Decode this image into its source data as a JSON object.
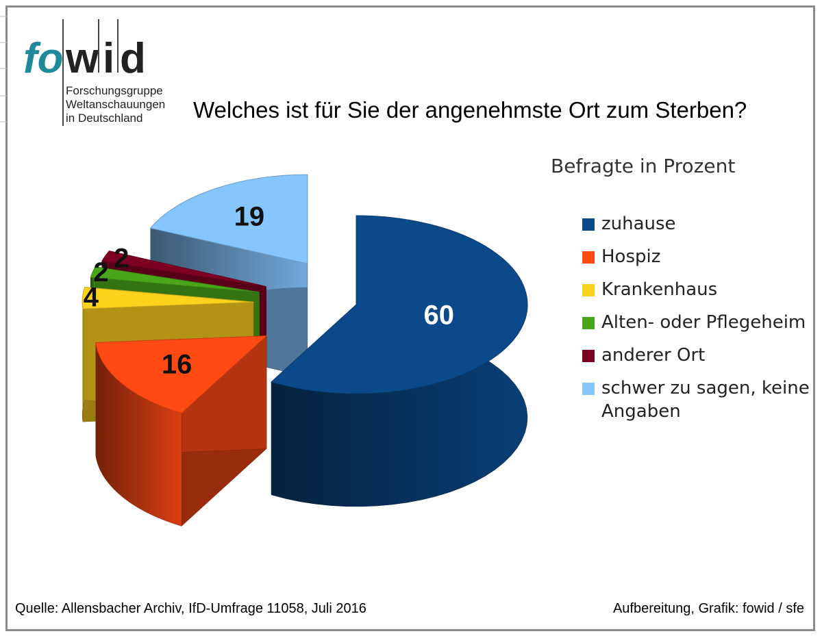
{
  "logo": {
    "letters_fo": "fo",
    "letter_w": "w",
    "letter_i": "i",
    "letter_d": "d",
    "line1": "Forschungsgruppe",
    "line2": "Weltanschauungen",
    "line3": "in Deutschland"
  },
  "colors": {
    "zuhause": "#0b4a8a",
    "hospiz": "#ff4a14",
    "krankenhaus": "#ffd21e",
    "alten": "#4aa51a",
    "anderer": "#7d0022",
    "schwer": "#86c6ff",
    "logo_teal": "#1f8a9a"
  },
  "chart_data": {
    "type": "pie",
    "title": "Welches ist für Sie der angenehmste Ort zum Sterben?",
    "subtitle": "Befragte in Prozent",
    "legend_position": "right",
    "slices": [
      {
        "label": "zuhause",
        "value": 60
      },
      {
        "label": "Hospiz",
        "value": 16
      },
      {
        "label": "Krankenhaus",
        "value": 4
      },
      {
        "label": "Alten- oder Pflegeheim",
        "value": 2
      },
      {
        "label": "anderer Ort",
        "value": 2
      },
      {
        "label": "schwer zu sagen, keine Angaben",
        "value": 19
      }
    ]
  },
  "footer": {
    "source": "Quelle: Allensbacher Archiv, IfD-Umfrage 11058, Juli 2016",
    "credit": "Aufbereitung, Grafik: fowid / sfe"
  }
}
